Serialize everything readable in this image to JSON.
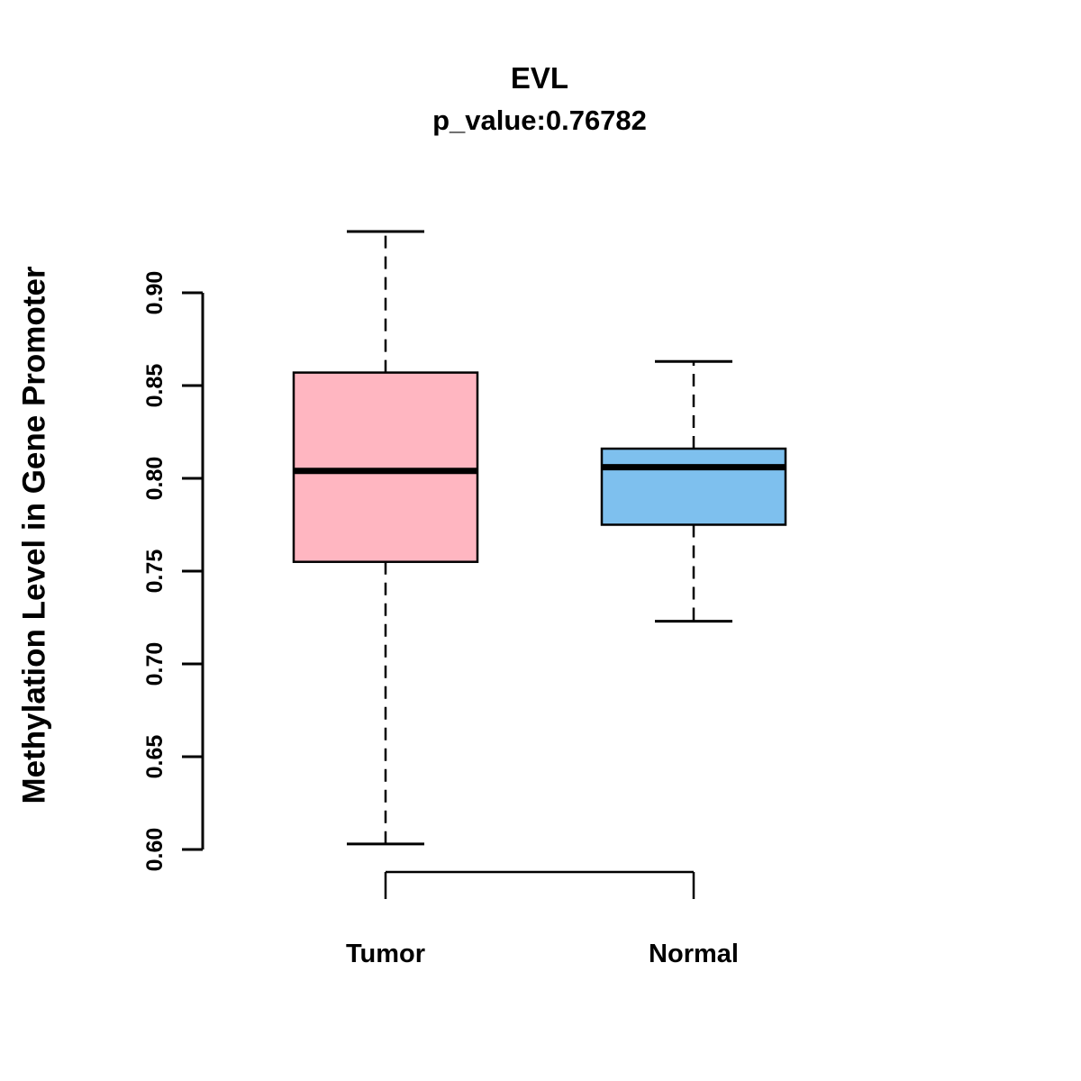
{
  "chart_data": {
    "type": "boxplot",
    "title": "EVL",
    "subtitle": "p_value:0.76782",
    "ylabel": "Methylation Level in Gene Promoter",
    "xlabel": "",
    "ylim": [
      0.6,
      0.9
    ],
    "yticks": [
      0.6,
      0.65,
      0.7,
      0.75,
      0.8,
      0.85,
      0.9
    ],
    "grid": false,
    "legend": "none",
    "groups": [
      {
        "label": "Tumor",
        "color": "#FFB6C1",
        "whisker_low": 0.603,
        "q1": 0.755,
        "median": 0.804,
        "q3": 0.857,
        "whisker_high": 0.933
      },
      {
        "label": "Normal",
        "color": "#7EC0EE",
        "whisker_low": 0.723,
        "q1": 0.775,
        "median": 0.806,
        "q3": 0.816,
        "whisker_high": 0.863
      }
    ]
  }
}
